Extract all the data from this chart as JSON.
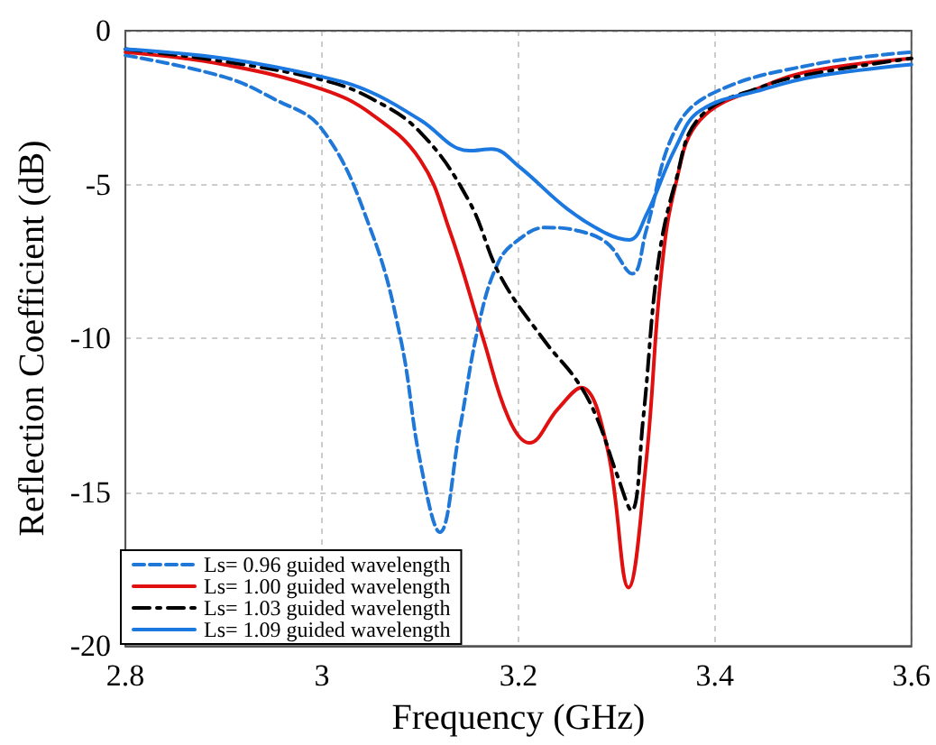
{
  "chart_data": {
    "type": "line",
    "xlabel": "Frequency (GHz)",
    "ylabel": "Reflection Coefficient (dB)",
    "xlim": [
      2.8,
      3.6
    ],
    "xticks": [
      {
        "value": 2.8,
        "label": "2.8"
      },
      {
        "value": 3.0,
        "label": "3"
      },
      {
        "value": 3.2,
        "label": "3.2"
      },
      {
        "value": 3.4,
        "label": "3.4"
      },
      {
        "value": 3.6,
        "label": "3.6"
      }
    ],
    "ylim": [
      -20,
      0
    ],
    "yticks": [
      -20,
      -15,
      -10,
      -5,
      0
    ],
    "grid": true,
    "legend": "bottom left",
    "marker": "none",
    "series": [
      {
        "name": "Ls= 0.96 guided wavelength",
        "color": "#1f77d8",
        "line_style": "dashed",
        "x": [
          2.8,
          2.9,
          2.95,
          3.0,
          3.05,
          3.08,
          3.1,
          3.12,
          3.14,
          3.16,
          3.18,
          3.2,
          3.227,
          3.26,
          3.29,
          3.316,
          3.33,
          3.36,
          3.4,
          3.5,
          3.6
        ],
        "values": [
          -0.8,
          -1.5,
          -2.2,
          -3.2,
          -6.5,
          -10,
          -14,
          -16.3,
          -13,
          -9.5,
          -7.5,
          -6.8,
          -6.4,
          -6.5,
          -6.9,
          -7.9,
          -6.5,
          -3.2,
          -2.0,
          -1.1,
          -0.7
        ]
      },
      {
        "name": "Ls= 1.00 guided wavelength",
        "color": "#e01010",
        "line_style": "solid",
        "x": [
          2.8,
          2.9,
          3.0,
          3.05,
          3.1,
          3.13,
          3.164,
          3.19,
          3.211,
          3.24,
          3.264,
          3.29,
          3.312,
          3.33,
          3.345,
          3.36,
          3.385,
          3.45,
          3.5,
          3.6
        ],
        "values": [
          -0.7,
          -1.1,
          -1.9,
          -2.7,
          -4.2,
          -6.5,
          -10,
          -12.6,
          -13.4,
          -12.3,
          -11.6,
          -13.5,
          -18.1,
          -14,
          -8,
          -5,
          -2.9,
          -1.8,
          -1.3,
          -0.9
        ]
      },
      {
        "name": "Ls= 1.03 guided wavelength",
        "color": "#000000",
        "line_style": "dashdot",
        "x": [
          2.8,
          2.9,
          3.0,
          3.05,
          3.1,
          3.149,
          3.182,
          3.227,
          3.26,
          3.28,
          3.3,
          3.315,
          3.327,
          3.342,
          3.36,
          3.385,
          3.45,
          3.5,
          3.6
        ],
        "values": [
          -0.6,
          -1.0,
          -1.6,
          -2.2,
          -3.3,
          -5.5,
          -8.0,
          -10.1,
          -11.4,
          -12.6,
          -14.4,
          -15.6,
          -12.6,
          -7.6,
          -4.9,
          -2.8,
          -1.8,
          -1.4,
          -0.9
        ]
      },
      {
        "name": "Ls= 1.09 guided wavelength",
        "color": "#1a78e0",
        "line_style": "solid",
        "x": [
          2.8,
          2.9,
          3.0,
          3.05,
          3.1,
          3.15,
          3.173,
          3.2,
          3.25,
          3.29,
          3.313,
          3.33,
          3.36,
          3.385,
          3.45,
          3.5,
          3.6
        ],
        "values": [
          -0.6,
          -0.9,
          -1.5,
          -2.0,
          -2.9,
          -3.9,
          -3.85,
          -4.4,
          -5.8,
          -6.6,
          -6.8,
          -6.0,
          -3.8,
          -2.6,
          -1.9,
          -1.5,
          -1.1
        ]
      }
    ]
  }
}
